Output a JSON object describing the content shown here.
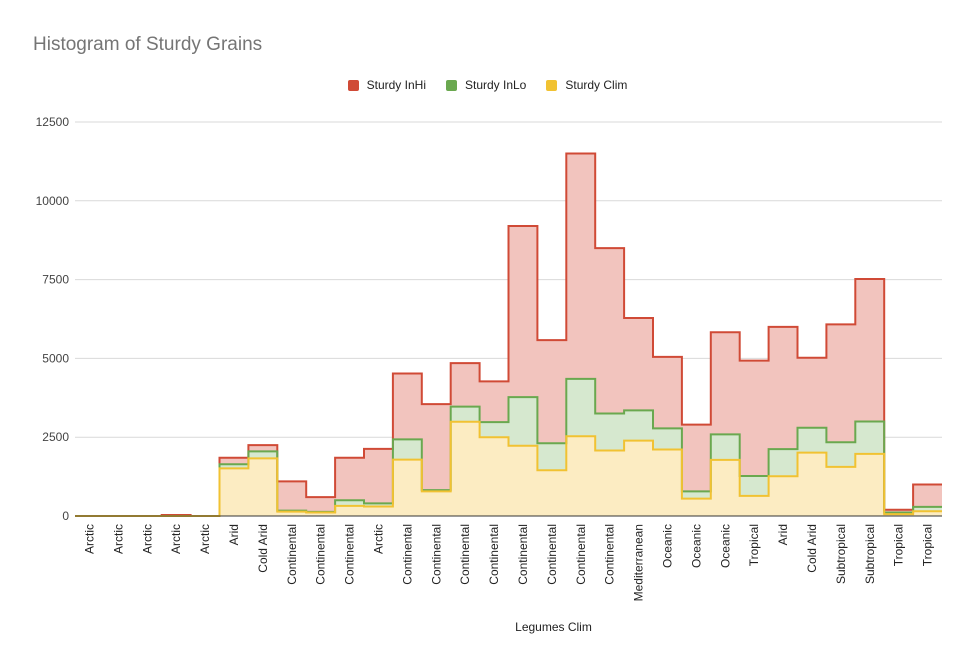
{
  "chart_data": {
    "type": "area",
    "title": "Histogram of Sturdy Grains",
    "xlabel": "Legumes Clim",
    "ylabel": "",
    "ylim": [
      0,
      12500
    ],
    "yticks": [
      0,
      2500,
      5000,
      7500,
      10000,
      12500
    ],
    "grid": true,
    "legend_position": "top",
    "categories": [
      "Arctic",
      "Arctic",
      "Arctic",
      "Arctic",
      "Arctic",
      "Arid",
      "Cold Arid",
      "Continental",
      "Continental",
      "Continental",
      "Arctic",
      "Continental",
      "Continental",
      "Continental",
      "Continental",
      "Continental",
      "Continental",
      "Continental",
      "Continental",
      "Mediterranean",
      "Oceanic",
      "Oceanic",
      "Oceanic",
      "Tropical",
      "Arid",
      "Cold Arid",
      "Subtropical",
      "Subtropical",
      "Tropical",
      "Tropical"
    ],
    "series": [
      {
        "name": "Sturdy InHi",
        "color": "#d04a36",
        "fill": "#f2c4be",
        "values": [
          0,
          0,
          0,
          30,
          0,
          1850,
          2250,
          1100,
          600,
          1850,
          2130,
          4520,
          3550,
          4850,
          4270,
          9200,
          5580,
          11500,
          8500,
          6280,
          5050,
          2900,
          5830,
          4930,
          6000,
          5020,
          6080,
          7520,
          200,
          1000
        ]
      },
      {
        "name": "Sturdy InLo",
        "color": "#6aa84f",
        "fill": "#d6e8cf",
        "values": [
          0,
          0,
          0,
          0,
          0,
          1640,
          2050,
          170,
          130,
          500,
          400,
          2430,
          820,
          3470,
          2980,
          3770,
          2310,
          4350,
          3250,
          3350,
          2780,
          780,
          2590,
          1270,
          2120,
          2800,
          2340,
          3000,
          110,
          290
        ]
      },
      {
        "name": "Sturdy Clim",
        "color": "#f1c232",
        "fill": "#fcecc2",
        "values": [
          0,
          0,
          0,
          0,
          0,
          1510,
          1830,
          140,
          110,
          320,
          300,
          1790,
          780,
          2990,
          2500,
          2230,
          1450,
          2530,
          2080,
          2390,
          2110,
          550,
          1780,
          640,
          1260,
          2010,
          1560,
          1970,
          60,
          150
        ]
      }
    ]
  }
}
